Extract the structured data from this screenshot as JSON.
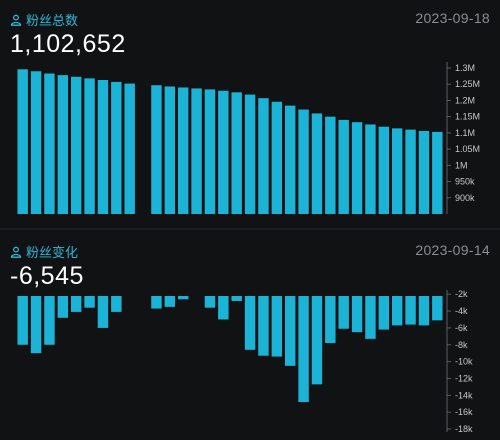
{
  "panels": {
    "total": {
      "title": "粉丝总数",
      "date": "2023-09-18",
      "value": "1,102,652"
    },
    "change": {
      "title": "粉丝变化",
      "date": "2023-09-14",
      "value": "-6,545"
    }
  },
  "colors": {
    "bar": "#1bb4d6",
    "title": "#2fb6d8",
    "date": "#8a8d93",
    "background": "#111214"
  },
  "chart_data": [
    {
      "type": "bar",
      "title": "粉丝总数",
      "x": [
        1,
        2,
        3,
        4,
        5,
        6,
        7,
        8,
        9,
        10,
        11,
        12,
        13,
        14,
        15,
        16,
        17,
        18,
        19,
        20,
        21,
        22,
        23,
        24,
        25,
        26,
        27,
        28,
        29,
        30,
        31,
        32
      ],
      "values": [
        1296000,
        1290000,
        1283000,
        1278000,
        1273000,
        1268000,
        1263000,
        1257000,
        1252000,
        null,
        1247000,
        1243000,
        1240000,
        1237000,
        1234000,
        1230000,
        1225000,
        1218000,
        1207000,
        1196000,
        1184000,
        1172000,
        1160000,
        1150000,
        1140000,
        1133000,
        1126000,
        1119000,
        1114000,
        1110000,
        1106000,
        1103000
      ],
      "ylim": [
        850000,
        1300000
      ],
      "yticks": [
        900000,
        950000,
        1000000,
        1050000,
        1100000,
        1150000,
        1200000,
        1250000,
        1300000
      ],
      "ytick_labels": [
        "900k",
        "950k",
        "1M",
        "1.05M",
        "1.1M",
        "1.15M",
        "1.2M",
        "1.25M",
        "1.3M"
      ],
      "axis_side": "right",
      "grid": false
    },
    {
      "type": "bar",
      "title": "粉丝变化",
      "x": [
        1,
        2,
        3,
        4,
        5,
        6,
        7,
        8,
        9,
        10,
        11,
        12,
        13,
        14,
        15,
        16,
        17,
        18,
        19,
        20,
        21,
        22,
        23,
        24,
        25,
        26,
        27,
        28,
        29,
        30,
        31,
        32
      ],
      "values": [
        -8000,
        -9000,
        -8000,
        -4800,
        -4100,
        -3600,
        -6000,
        -4100,
        null,
        null,
        -3700,
        -3500,
        -2600,
        -1700,
        -3600,
        -5000,
        -2800,
        -8600,
        -9300,
        -9400,
        -10500,
        -14800,
        -12700,
        -7800,
        -6100,
        -6500,
        -7300,
        -6200,
        -5700,
        -5600,
        -5700,
        -5100
      ],
      "ylim": [
        -18000,
        -1500
      ],
      "yticks": [
        -2000,
        -4000,
        -6000,
        -8000,
        -10000,
        -12000,
        -14000,
        -16000,
        -18000
      ],
      "ytick_labels": [
        "-2k",
        "-4k",
        "-6k",
        "-8k",
        "-10k",
        "-12k",
        "-14k",
        "-16k",
        "-18k"
      ],
      "axis_side": "right",
      "grid": false
    }
  ]
}
